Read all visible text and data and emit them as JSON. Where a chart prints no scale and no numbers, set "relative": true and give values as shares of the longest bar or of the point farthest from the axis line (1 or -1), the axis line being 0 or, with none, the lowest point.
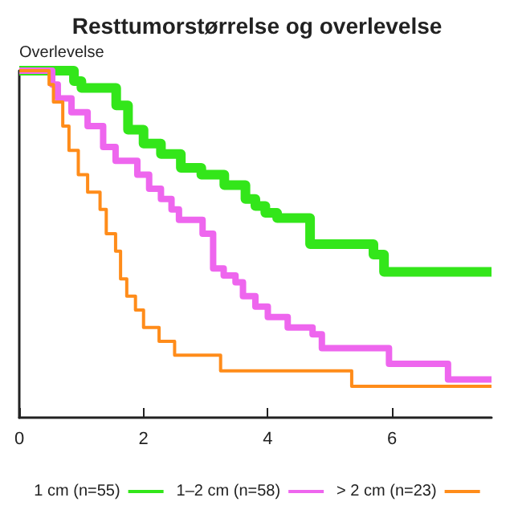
{
  "chart_data": {
    "type": "step",
    "title": "Resttumorstørrelse og overlevelse",
    "ylabel": "Overlevelse",
    "relative": true,
    "xlim": [
      0,
      7.6
    ],
    "xticks": [
      0,
      2,
      4,
      6
    ],
    "grid": false,
    "legend": "bottom",
    "marker": "none",
    "series": [
      {
        "name": "1 cm (n=55)",
        "color": "#33e61a",
        "x": [
          0,
          0.88,
          1.0,
          1.56,
          1.75,
          2.0,
          2.28,
          2.6,
          2.93,
          3.3,
          3.64,
          3.8,
          3.96,
          4.15,
          4.68,
          5.7,
          5.87,
          7.6
        ],
        "values": [
          1,
          0.97,
          0.95,
          0.9,
          0.83,
          0.79,
          0.76,
          0.72,
          0.7,
          0.67,
          0.63,
          0.61,
          0.59,
          0.575,
          0.5,
          0.47,
          0.42,
          0.42
        ]
      },
      {
        "name": "1–2 cm (n=58)",
        "color": "#ee66ee",
        "x": [
          0,
          0.53,
          0.62,
          0.84,
          1.1,
          1.35,
          1.55,
          1.9,
          2.09,
          2.28,
          2.45,
          2.57,
          2.95,
          3.12,
          3.29,
          3.48,
          3.6,
          3.8,
          4.0,
          4.32,
          4.72,
          4.87,
          5.95,
          6.9,
          7.6
        ],
        "values": [
          1,
          0.96,
          0.92,
          0.88,
          0.84,
          0.78,
          0.74,
          0.7,
          0.66,
          0.63,
          0.6,
          0.57,
          0.53,
          0.43,
          0.41,
          0.39,
          0.35,
          0.32,
          0.29,
          0.26,
          0.24,
          0.2,
          0.155,
          0.11,
          0.11
        ]
      },
      {
        "name": "> 2 cm (n=23)",
        "color": "#ff8c1a",
        "x": [
          0,
          0.48,
          0.55,
          0.7,
          0.8,
          0.95,
          1.1,
          1.3,
          1.4,
          1.55,
          1.63,
          1.73,
          1.87,
          2.0,
          2.25,
          2.5,
          3.24,
          5.35,
          7.6
        ],
        "values": [
          1,
          0.96,
          0.91,
          0.84,
          0.77,
          0.7,
          0.65,
          0.6,
          0.53,
          0.48,
          0.4,
          0.35,
          0.31,
          0.26,
          0.22,
          0.18,
          0.135,
          0.09,
          0.09
        ]
      }
    ]
  }
}
